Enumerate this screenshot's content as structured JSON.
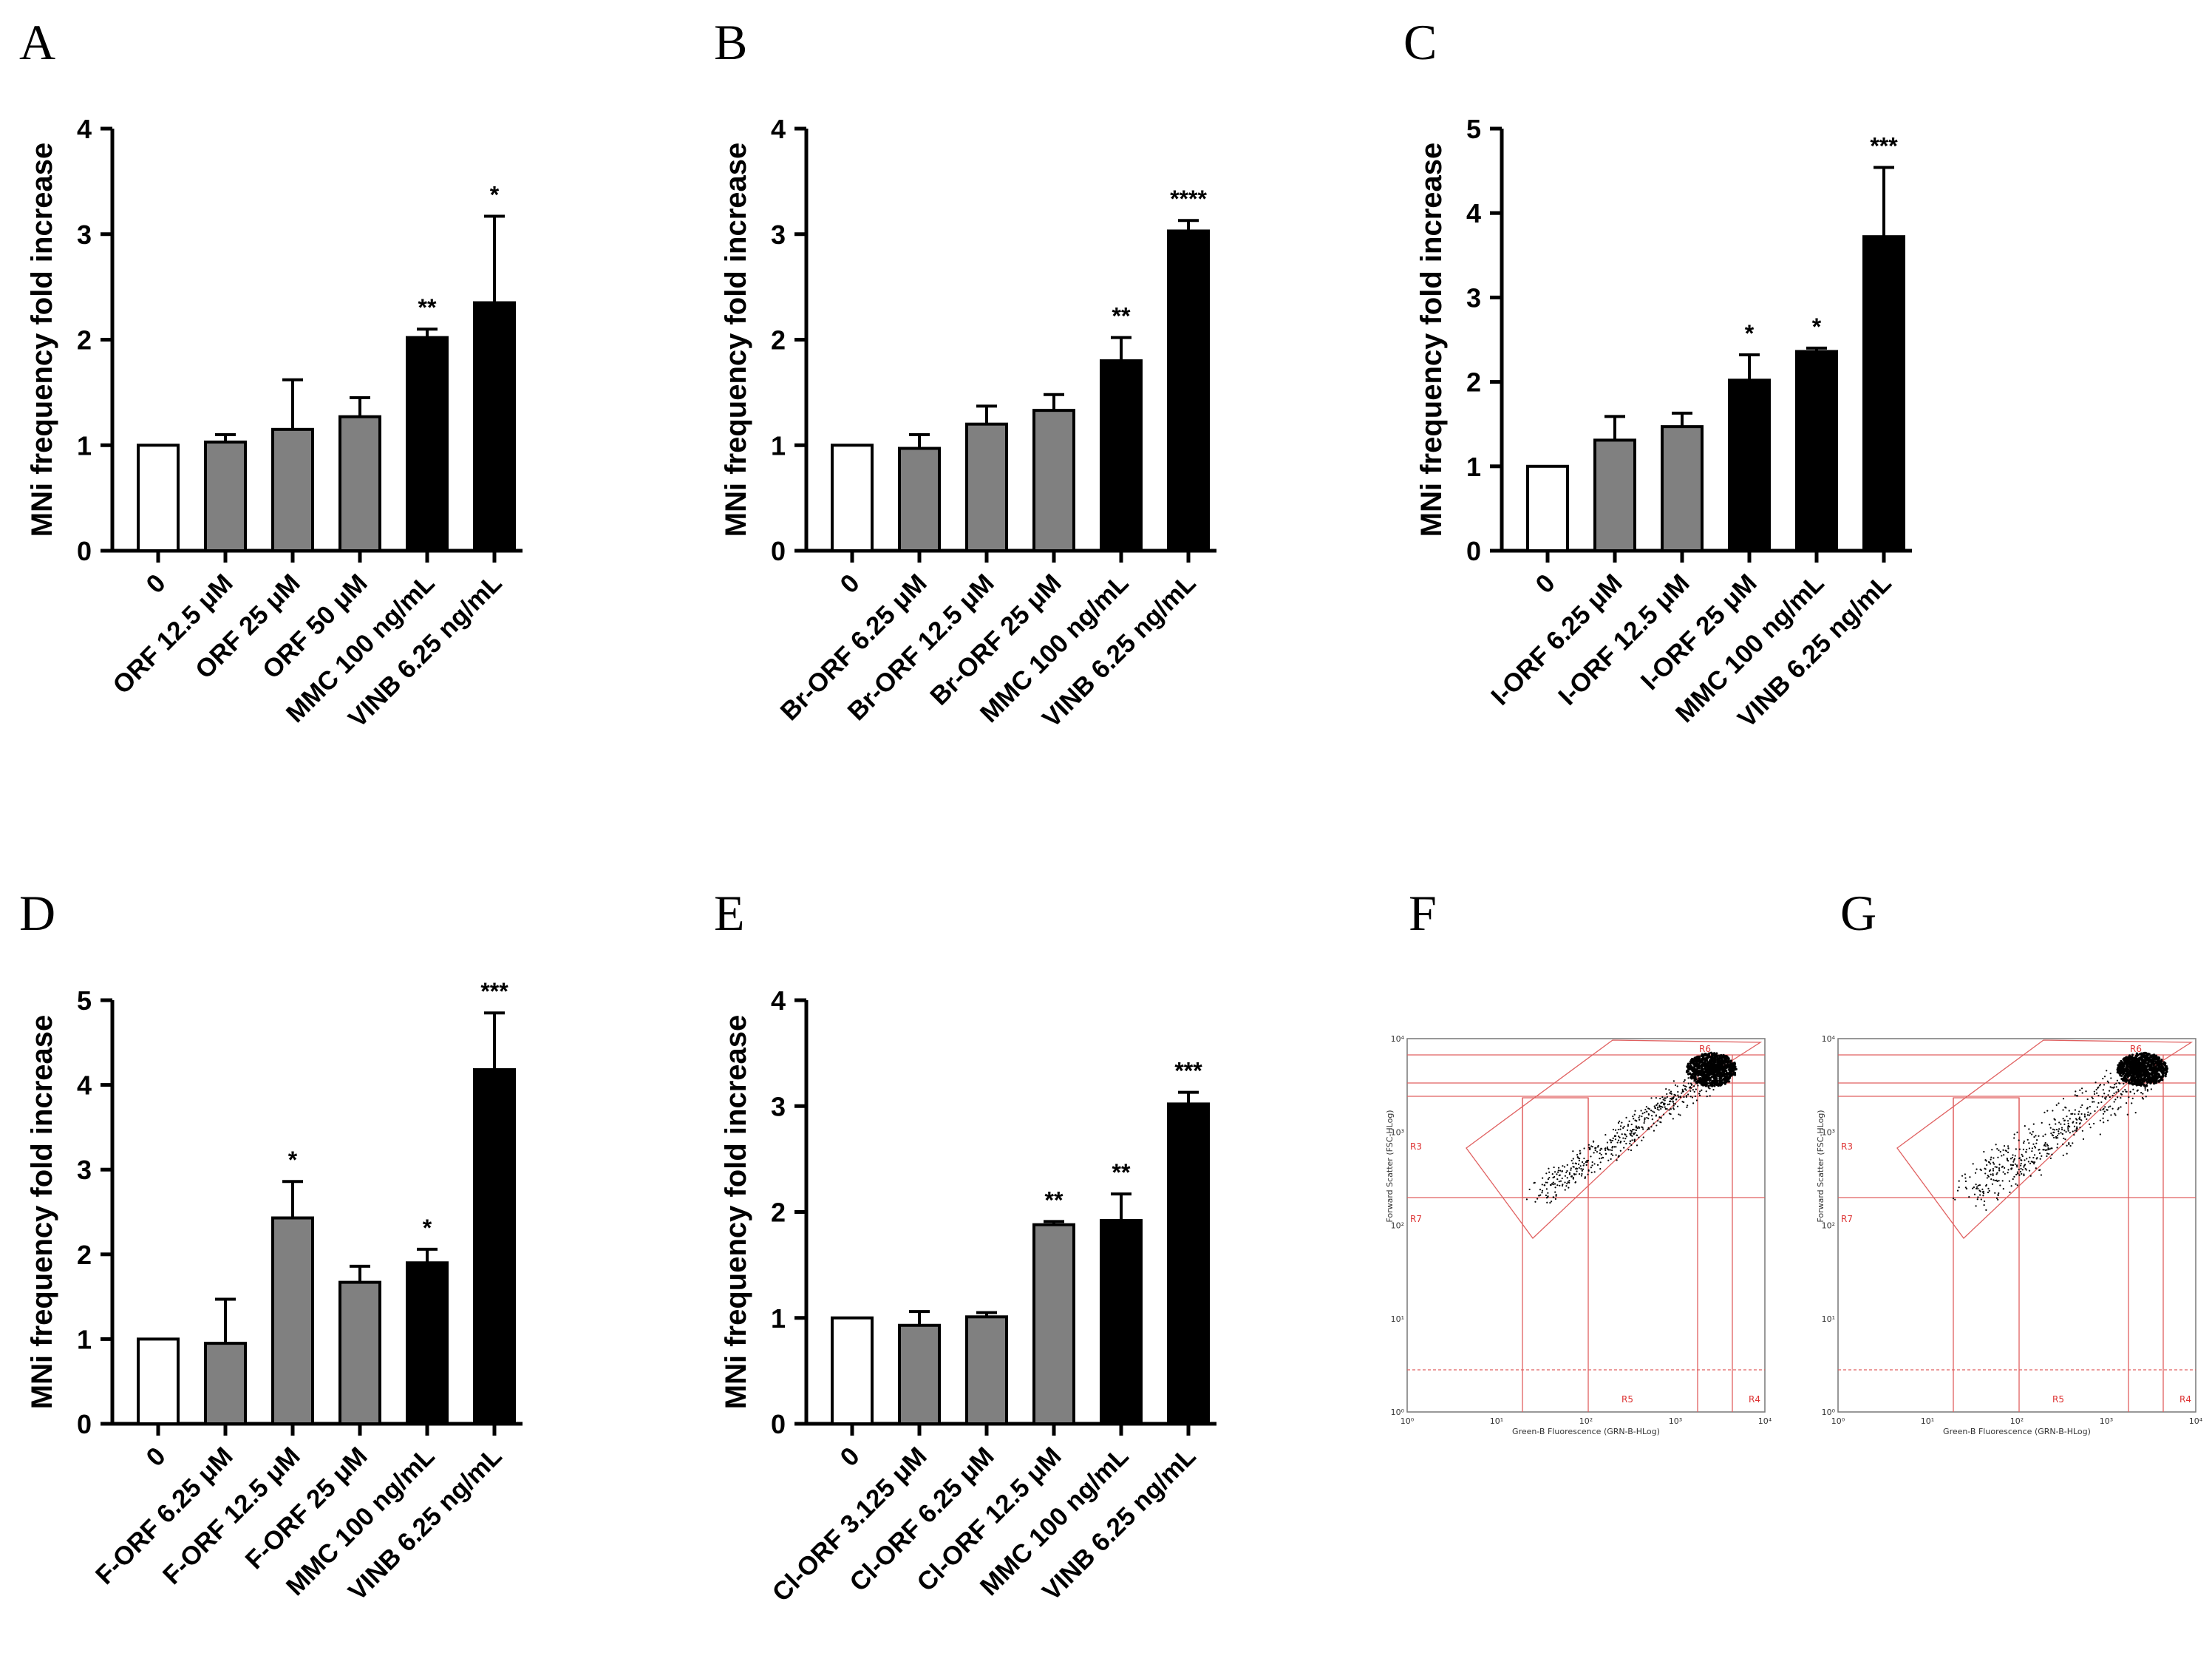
{
  "figure": {
    "panel_letters": [
      "A",
      "B",
      "C",
      "D",
      "E",
      "F",
      "G"
    ]
  },
  "colors": {
    "control": "#ffffff",
    "test": "#808080",
    "positive": "#000000",
    "gate": "#e06060"
  },
  "chart_data": [
    {
      "panel": "A",
      "type": "bar",
      "ylabel": "MNi frequency fold increase",
      "xlabel": "",
      "ylim": [
        0,
        4
      ],
      "yticks": [
        0,
        1,
        2,
        3,
        4
      ],
      "categories": [
        "0",
        "ORF 12.5 μM",
        "ORF 25 μM",
        "ORF 50 μM",
        "MMC 100 ng/mL",
        "VINB 6.25 ng/mL"
      ],
      "values": [
        1.0,
        1.03,
        1.15,
        1.27,
        2.02,
        2.35
      ],
      "errors": [
        0,
        0.07,
        0.47,
        0.18,
        0.08,
        0.82
      ],
      "fills": [
        "control",
        "test",
        "test",
        "test",
        "positive",
        "positive"
      ],
      "significance": [
        "",
        "",
        "",
        "",
        "**",
        "*"
      ]
    },
    {
      "panel": "B",
      "type": "bar",
      "ylabel": "MNi frequency fold increase",
      "xlabel": "",
      "ylim": [
        0,
        4
      ],
      "yticks": [
        0,
        1,
        2,
        3,
        4
      ],
      "categories": [
        "0",
        "Br-ORF 6.25 μM",
        "Br-ORF 12.5 μM",
        "Br-ORF 25 μM",
        "MMC 100 ng/mL",
        "VINB 6.25 ng/mL"
      ],
      "values": [
        1.0,
        0.97,
        1.2,
        1.33,
        1.8,
        3.03
      ],
      "errors": [
        0,
        0.13,
        0.17,
        0.15,
        0.22,
        0.1
      ],
      "fills": [
        "control",
        "test",
        "test",
        "test",
        "positive",
        "positive"
      ],
      "significance": [
        "",
        "",
        "",
        "",
        "**",
        "****"
      ]
    },
    {
      "panel": "C",
      "type": "bar",
      "ylabel": "MNi frequency fold increase",
      "xlabel": "",
      "ylim": [
        0,
        5
      ],
      "yticks": [
        0,
        1,
        2,
        3,
        4,
        5
      ],
      "categories": [
        "0",
        "I-ORF 6.25 μM",
        "I-ORF 12.5 μM",
        "I-ORF 25 μM",
        "MMC 100 ng/mL",
        "VINB 6.25 ng/mL"
      ],
      "values": [
        1.0,
        1.31,
        1.47,
        2.02,
        2.36,
        3.72
      ],
      "errors": [
        0,
        0.28,
        0.16,
        0.3,
        0.04,
        0.82
      ],
      "fills": [
        "control",
        "test",
        "test",
        "positive",
        "positive",
        "positive"
      ],
      "significance": [
        "",
        "",
        "",
        "*",
        "*",
        "***"
      ]
    },
    {
      "panel": "D",
      "type": "bar",
      "ylabel": "MNi frequency fold increase",
      "xlabel": "",
      "ylim": [
        0,
        5
      ],
      "yticks": [
        0,
        1,
        2,
        3,
        4,
        5
      ],
      "categories": [
        "0",
        "F-ORF 6.25 μM",
        "F-ORF 12.5 μM",
        "F-ORF 25 μM",
        "MMC 100 ng/mL",
        "VINB 6.25 ng/mL"
      ],
      "values": [
        1.0,
        0.95,
        2.43,
        1.67,
        1.9,
        4.18
      ],
      "errors": [
        0,
        0.52,
        0.43,
        0.19,
        0.16,
        0.67
      ],
      "fills": [
        "control",
        "test",
        "test",
        "test",
        "positive",
        "positive"
      ],
      "significance": [
        "",
        "",
        "*",
        "",
        "*",
        "***"
      ]
    },
    {
      "panel": "E",
      "type": "bar",
      "ylabel": "MNi frequency fold increase",
      "xlabel": "",
      "ylim": [
        0,
        4
      ],
      "yticks": [
        0,
        1,
        2,
        3,
        4
      ],
      "categories": [
        "0",
        "Cl-ORF 3.125 μM",
        "Cl-ORF 6.25 μM",
        "Cl-ORF 12.5 μM",
        "MMC 100 ng/mL",
        "VINB 6.25 ng/mL"
      ],
      "values": [
        1.0,
        0.93,
        1.01,
        1.88,
        1.92,
        3.02
      ],
      "errors": [
        0,
        0.13,
        0.04,
        0.03,
        0.25,
        0.11
      ],
      "fills": [
        "control",
        "test",
        "test",
        "test",
        "positive",
        "positive"
      ],
      "significance": [
        "",
        "",
        "",
        "**",
        "**",
        "***"
      ]
    }
  ],
  "flow_panels": [
    {
      "panel": "F",
      "y_axis": "Forward Scatter (FSC-HLog)",
      "x_axis": "Green-B Fluorescence (GRN-B-HLog)",
      "x_ticks": [
        "10⁰",
        "10¹",
        "10²",
        "10³",
        "10⁴"
      ],
      "y_ticks": [
        "10⁰",
        "10¹",
        "10²",
        "10³",
        "10⁴"
      ],
      "gates": [
        "R6",
        "R3",
        "R7",
        "R5",
        "R4"
      ]
    },
    {
      "panel": "G",
      "y_axis": "Forward Scatter (FSC-HLog)",
      "x_axis": "Green-B Fluorescence (GRN-B-HLog)",
      "x_ticks": [
        "10⁰",
        "10¹",
        "10²",
        "10³",
        "10⁴"
      ],
      "y_ticks": [
        "10⁰",
        "10¹",
        "10²",
        "10³",
        "10⁴"
      ],
      "gates": [
        "R6",
        "R3",
        "R7",
        "R5",
        "R4"
      ]
    }
  ]
}
